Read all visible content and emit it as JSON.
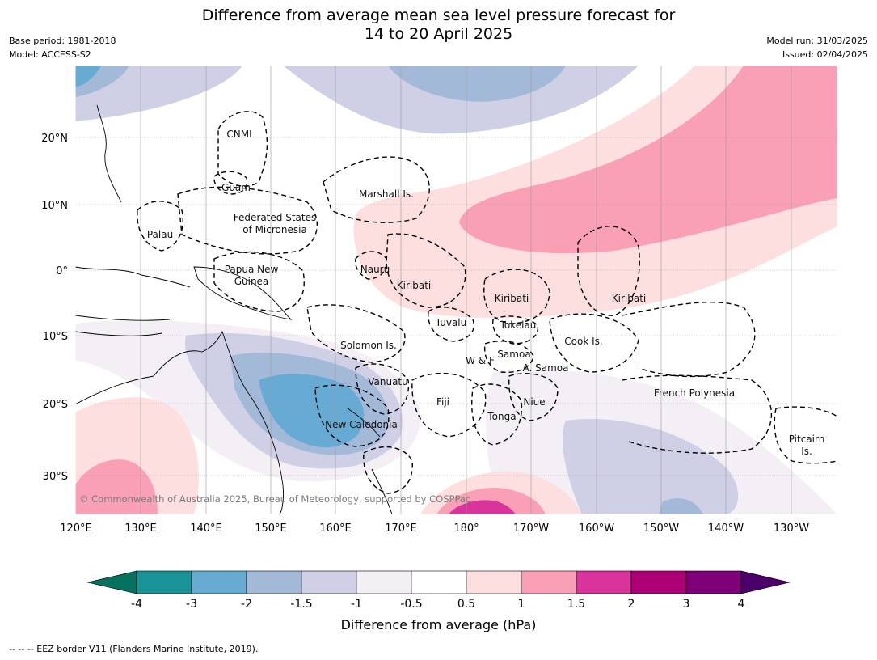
{
  "title_line1": "Difference from average mean sea level pressure forecast for",
  "title_line2": "14 to 20 April 2025",
  "base_period": "Base period: 1981-2018",
  "model": "Model: ACCESS-S2",
  "model_run": "Model run: 31/03/2025",
  "issued": "Issued: 02/04/2025",
  "copyright": "© Commonwealth of Australia 2025, Bureau of Meteorology, supported by COSPPac",
  "lat_labels": [
    "20°N",
    "10°N",
    "0°",
    "10°S",
    "20°S",
    "30°S"
  ],
  "lon_labels": [
    "120°E",
    "130°E",
    "140°E",
    "150°E",
    "160°E",
    "170°E",
    "180°",
    "170°W",
    "160°W",
    "150°W",
    "140°W",
    "130°W"
  ],
  "regions": [
    "CNMI",
    "Guam",
    "Marshall Is.",
    "Federated States",
    "of Micronesia",
    "Palau",
    "Papua New",
    "Guinea",
    "Nauru",
    "Kiribati",
    "Kiribati",
    "Kiribati",
    "Tuvalu",
    "Tokelau",
    "Cook Is.",
    "Solomon Is.",
    "Samoa",
    "W & F",
    "A. Samoa",
    "Vanuatu",
    "Fiji",
    "Niue",
    "French Polynesia",
    "Tonga",
    "New Caledonia",
    "Pitcairn",
    "Is."
  ],
  "colorbar": {
    "label": "Difference from average (hPa)",
    "ticks": [
      "-4",
      "-3",
      "-2",
      "-1.5",
      "-1",
      "-0.5",
      "0.5",
      "1",
      "1.5",
      "2",
      "3",
      "4"
    ],
    "colors": [
      "#1a9399",
      "#67aad4",
      "#a3b9d8",
      "#cfd0e6",
      "#f3eff5",
      "#ffffff",
      "#fddfe0",
      "#f9a0b6",
      "#d9339c",
      "#ad0077",
      "#7e0078"
    ],
    "under_color": "#05705e",
    "over_color": "#4a0068"
  },
  "footnote": "--  --  -- EEZ border V11 (Flanders Marine Institute, 2019)."
}
